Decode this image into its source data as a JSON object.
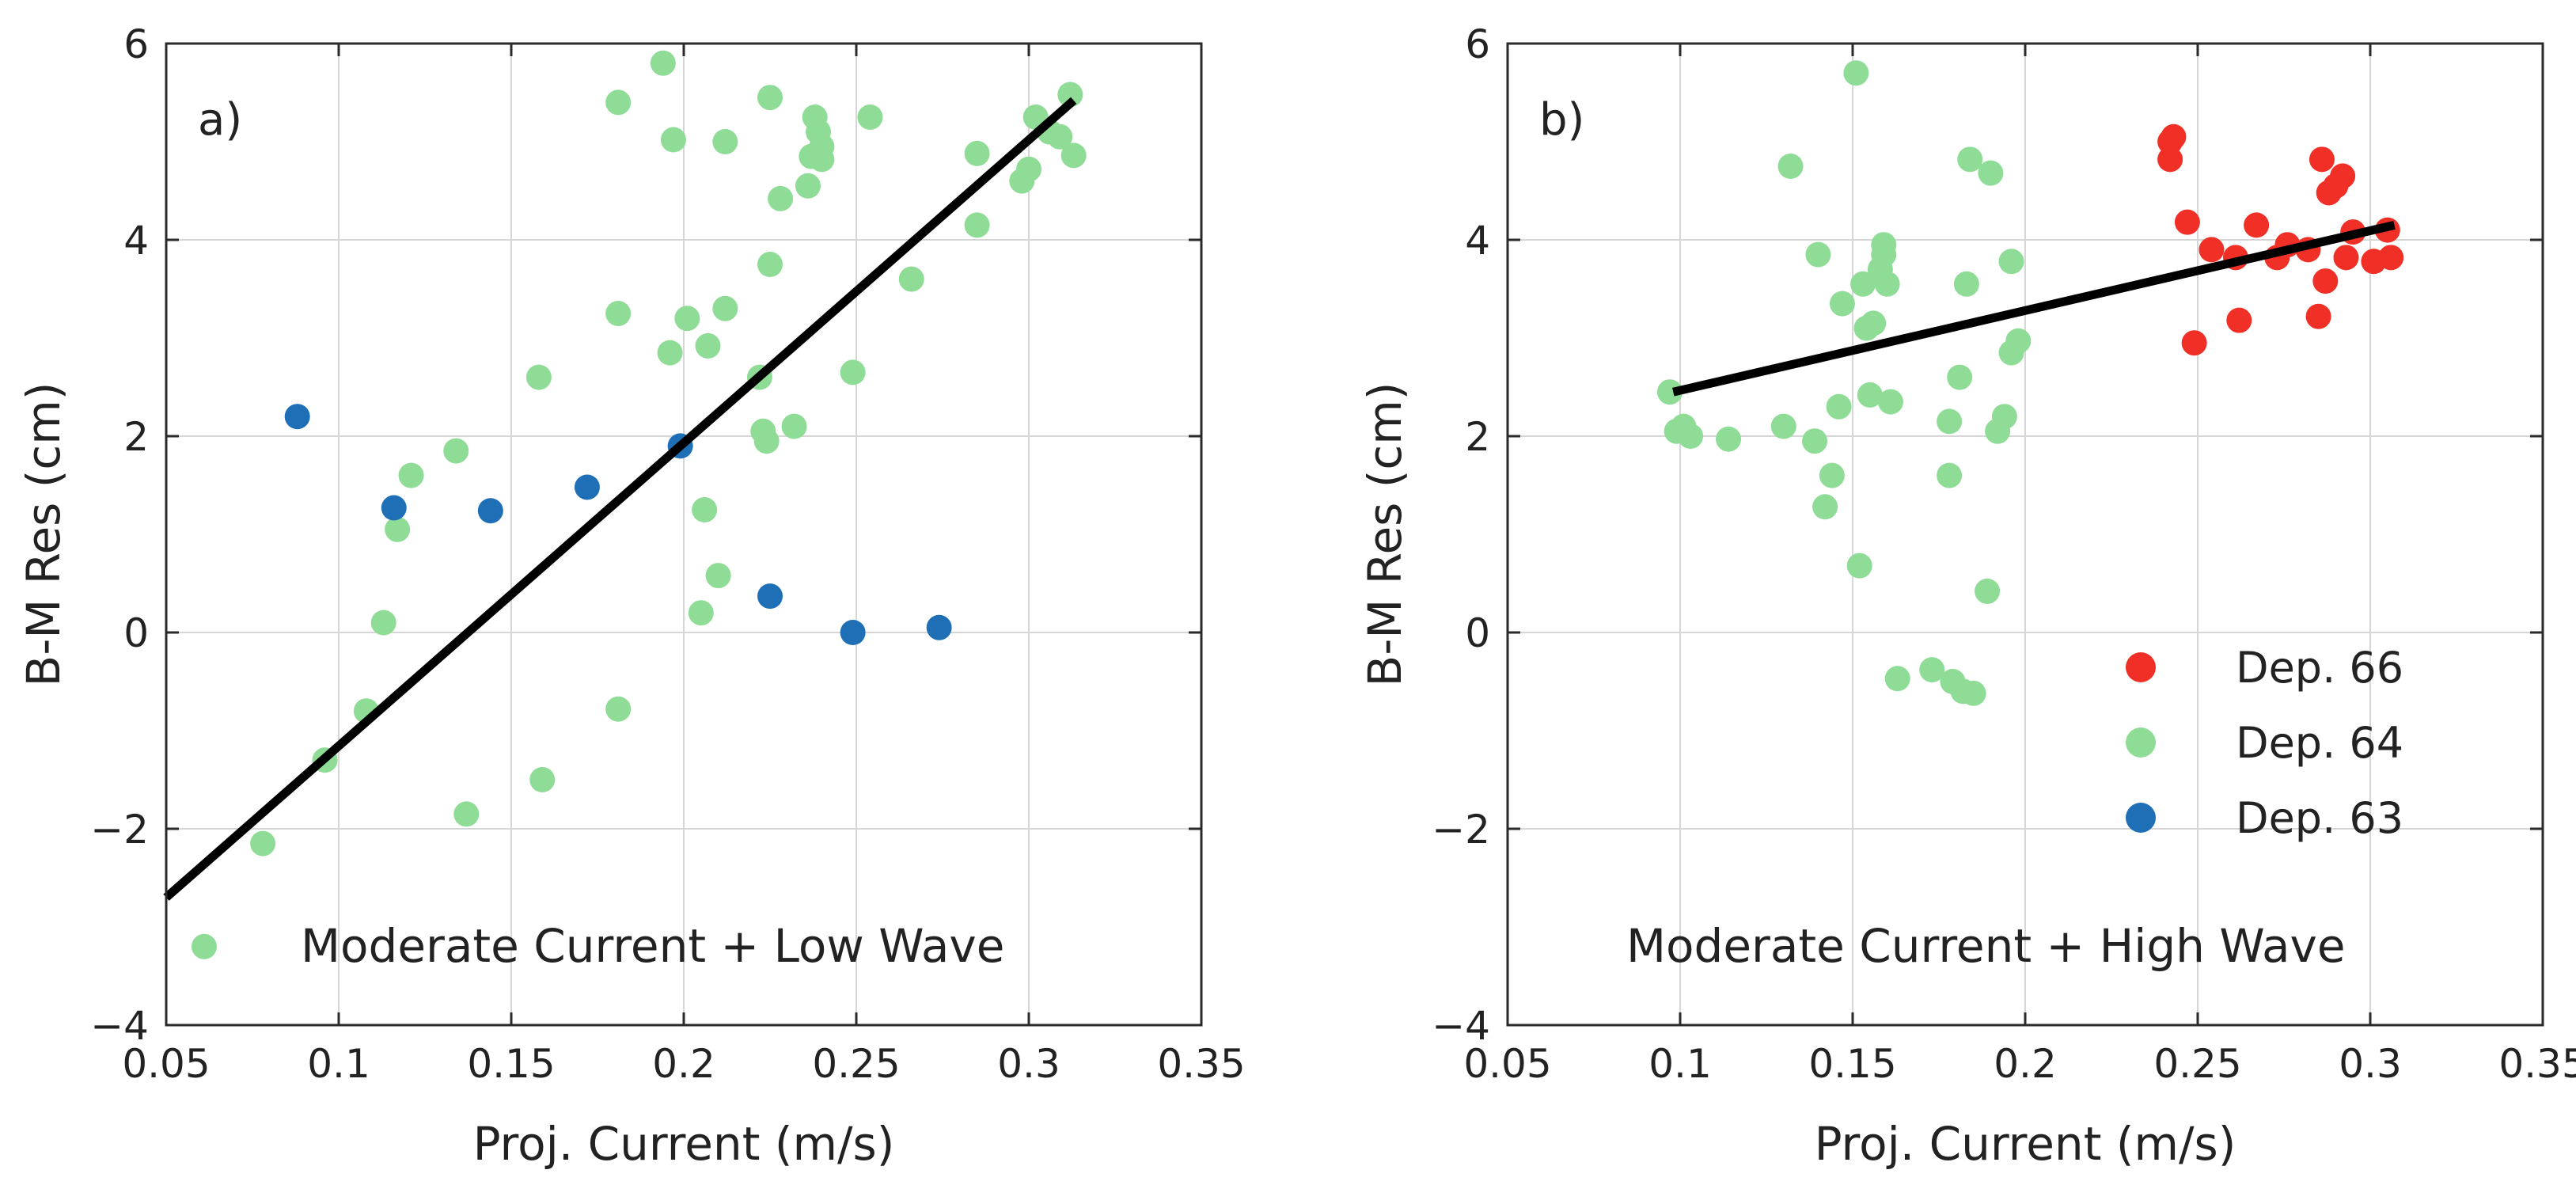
{
  "colors": {
    "dep66": "#f03027",
    "dep64": "#8fdc97",
    "dep63": "#1f6fb6",
    "fit": "#000000"
  },
  "legend": {
    "entries": [
      {
        "label": "Dep. 66",
        "color_key": "dep66"
      },
      {
        "label": "Dep. 64",
        "color_key": "dep64"
      },
      {
        "label": "Dep. 63",
        "color_key": "dep63"
      }
    ]
  },
  "chart_data": [
    {
      "type": "scatter",
      "panel_label": "a)",
      "annotation": "Moderate Current + Low Wave",
      "xlabel": "Proj. Current (m/s)",
      "ylabel": "B-M Res (cm)",
      "xlim": [
        0.05,
        0.35
      ],
      "ylim": [
        -4,
        6
      ],
      "xticks": [
        0.05,
        0.1,
        0.15,
        0.2,
        0.25,
        0.3,
        0.35
      ],
      "xtick_labels": [
        "0.05",
        "0.1",
        "0.15",
        "0.2",
        "0.25",
        "0.3",
        "0.35"
      ],
      "yticks": [
        -4,
        -2,
        0,
        2,
        4,
        6
      ],
      "ytick_labels": [
        "−4",
        "−2",
        "0",
        "2",
        "4",
        "6"
      ],
      "grid": true,
      "series": [
        {
          "name": "Dep. 64",
          "color_key": "dep64",
          "points": [
            [
              0.061,
              -3.2
            ],
            [
              0.078,
              -2.15
            ],
            [
              0.096,
              -1.3
            ],
            [
              0.108,
              -0.8
            ],
            [
              0.113,
              0.1
            ],
            [
              0.117,
              1.05
            ],
            [
              0.121,
              1.6
            ],
            [
              0.134,
              1.85
            ],
            [
              0.137,
              -1.85
            ],
            [
              0.158,
              2.6
            ],
            [
              0.159,
              -1.5
            ],
            [
              0.181,
              3.25
            ],
            [
              0.181,
              5.4
            ],
            [
              0.181,
              -0.78
            ],
            [
              0.194,
              5.8
            ],
            [
              0.196,
              2.85
            ],
            [
              0.197,
              5.02
            ],
            [
              0.201,
              3.2
            ],
            [
              0.205,
              0.2
            ],
            [
              0.206,
              1.25
            ],
            [
              0.207,
              2.92
            ],
            [
              0.21,
              0.58
            ],
            [
              0.212,
              3.3
            ],
            [
              0.212,
              5.0
            ],
            [
              0.222,
              2.6
            ],
            [
              0.223,
              2.05
            ],
            [
              0.224,
              1.95
            ],
            [
              0.225,
              3.75
            ],
            [
              0.225,
              5.45
            ],
            [
              0.228,
              4.42
            ],
            [
              0.232,
              2.1
            ],
            [
              0.236,
              4.55
            ],
            [
              0.237,
              4.85
            ],
            [
              0.238,
              5.25
            ],
            [
              0.239,
              5.1
            ],
            [
              0.24,
              4.95
            ],
            [
              0.24,
              4.82
            ],
            [
              0.249,
              2.65
            ],
            [
              0.254,
              5.25
            ],
            [
              0.266,
              3.6
            ],
            [
              0.285,
              4.15
            ],
            [
              0.285,
              4.88
            ],
            [
              0.298,
              4.6
            ],
            [
              0.3,
              4.72
            ],
            [
              0.302,
              5.25
            ],
            [
              0.306,
              5.1
            ],
            [
              0.309,
              5.05
            ],
            [
              0.312,
              5.48
            ],
            [
              0.313,
              4.86
            ]
          ]
        },
        {
          "name": "Dep. 63",
          "color_key": "dep63",
          "points": [
            [
              0.088,
              2.2
            ],
            [
              0.116,
              1.27
            ],
            [
              0.144,
              1.24
            ],
            [
              0.172,
              1.48
            ],
            [
              0.199,
              1.9
            ],
            [
              0.225,
              0.37
            ],
            [
              0.249,
              0.0
            ],
            [
              0.274,
              0.05
            ]
          ]
        }
      ],
      "fit_line": {
        "x": [
          0.05,
          0.313
        ],
        "y": [
          -2.7,
          5.42
        ]
      }
    },
    {
      "type": "scatter",
      "panel_label": "b)",
      "annotation": "Moderate Current + High Wave",
      "xlabel": "Proj. Current (m/s)",
      "ylabel": "B-M Res (cm)",
      "xlim": [
        0.05,
        0.35
      ],
      "ylim": [
        -4,
        6
      ],
      "xticks": [
        0.05,
        0.1,
        0.15,
        0.2,
        0.25,
        0.3,
        0.35
      ],
      "xtick_labels": [
        "0.05",
        "0.1",
        "0.15",
        "0.2",
        "0.25",
        "0.3",
        "0.35"
      ],
      "yticks": [
        -4,
        -2,
        0,
        2,
        4,
        6
      ],
      "ytick_labels": [
        "−4",
        "−2",
        "0",
        "2",
        "4",
        "6"
      ],
      "grid": true,
      "legend_position": "lower-right",
      "series": [
        {
          "name": "Dep. 64",
          "color_key": "dep64",
          "points": [
            [
              0.097,
              2.45
            ],
            [
              0.099,
              2.05
            ],
            [
              0.101,
              2.1
            ],
            [
              0.103,
              2.0
            ],
            [
              0.114,
              1.97
            ],
            [
              0.13,
              2.1
            ],
            [
              0.132,
              4.75
            ],
            [
              0.139,
              1.95
            ],
            [
              0.14,
              3.85
            ],
            [
              0.142,
              1.28
            ],
            [
              0.144,
              1.6
            ],
            [
              0.146,
              2.3
            ],
            [
              0.147,
              3.35
            ],
            [
              0.151,
              5.7
            ],
            [
              0.152,
              0.68
            ],
            [
              0.153,
              3.55
            ],
            [
              0.154,
              3.1
            ],
            [
              0.155,
              2.42
            ],
            [
              0.156,
              3.15
            ],
            [
              0.158,
              3.7
            ],
            [
              0.159,
              3.85
            ],
            [
              0.159,
              3.95
            ],
            [
              0.16,
              3.55
            ],
            [
              0.161,
              2.35
            ],
            [
              0.163,
              -0.47
            ],
            [
              0.173,
              -0.38
            ],
            [
              0.178,
              1.6
            ],
            [
              0.178,
              2.15
            ],
            [
              0.179,
              -0.5
            ],
            [
              0.181,
              2.6
            ],
            [
              0.182,
              -0.6
            ],
            [
              0.183,
              3.55
            ],
            [
              0.184,
              4.82
            ],
            [
              0.185,
              -0.62
            ],
            [
              0.189,
              0.42
            ],
            [
              0.19,
              4.68
            ],
            [
              0.192,
              2.05
            ],
            [
              0.194,
              2.2
            ],
            [
              0.196,
              2.85
            ],
            [
              0.196,
              3.78
            ],
            [
              0.198,
              2.97
            ]
          ]
        },
        {
          "name": "Dep. 66",
          "color_key": "dep66",
          "points": [
            [
              0.242,
              4.82
            ],
            [
              0.242,
              5.0
            ],
            [
              0.243,
              5.05
            ],
            [
              0.247,
              4.18
            ],
            [
              0.249,
              2.95
            ],
            [
              0.254,
              3.9
            ],
            [
              0.261,
              3.82
            ],
            [
              0.262,
              3.18
            ],
            [
              0.267,
              4.15
            ],
            [
              0.273,
              3.82
            ],
            [
              0.276,
              3.95
            ],
            [
              0.282,
              3.9
            ],
            [
              0.285,
              3.22
            ],
            [
              0.286,
              4.82
            ],
            [
              0.287,
              3.58
            ],
            [
              0.288,
              4.48
            ],
            [
              0.29,
              4.55
            ],
            [
              0.292,
              4.65
            ],
            [
              0.293,
              3.82
            ],
            [
              0.295,
              4.08
            ],
            [
              0.301,
              3.78
            ],
            [
              0.305,
              4.1
            ],
            [
              0.306,
              3.82
            ]
          ]
        }
      ],
      "fit_line": {
        "x": [
          0.098,
          0.307
        ],
        "y": [
          2.45,
          4.15
        ]
      }
    }
  ]
}
